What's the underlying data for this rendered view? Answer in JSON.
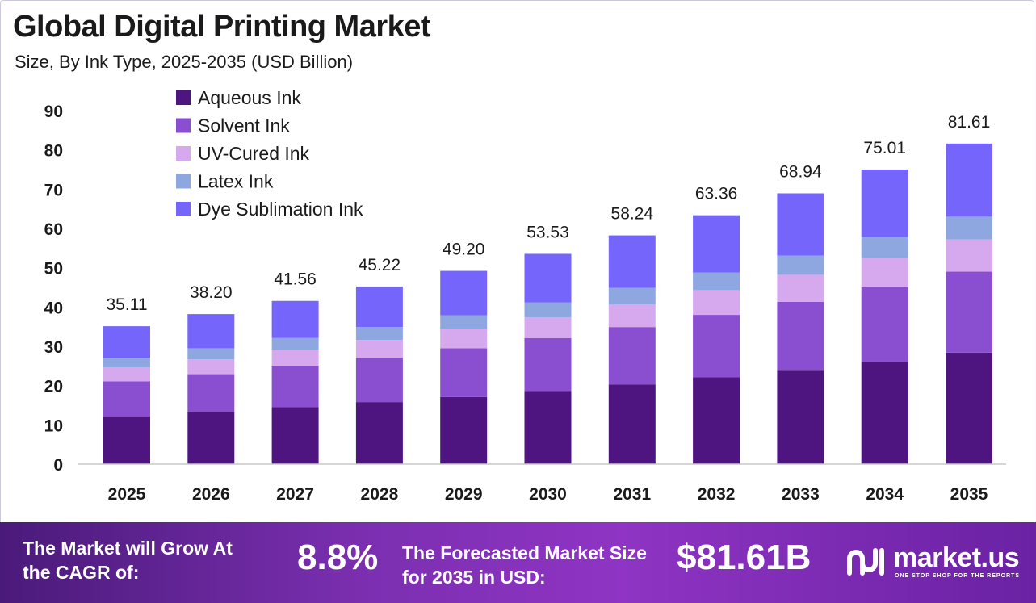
{
  "header": {
    "title": "Global Digital Printing Market",
    "subtitle": "Size, By Ink Type, 2025-2035 (USD Billion)"
  },
  "chart_data": {
    "type": "bar",
    "stacked": true,
    "categories": [
      "2025",
      "2026",
      "2027",
      "2028",
      "2029",
      "2030",
      "2031",
      "2032",
      "2033",
      "2034",
      "2035"
    ],
    "totals": [
      "35.11",
      "38.20",
      "41.56",
      "45.22",
      "49.20",
      "53.53",
      "58.24",
      "63.36",
      "68.94",
      "75.01",
      "81.61"
    ],
    "series": [
      {
        "name": "Aqueous Ink",
        "color": "#4e1580",
        "values": [
          12.2,
          13.3,
          14.5,
          15.8,
          17.1,
          18.6,
          20.3,
          22.1,
          24.0,
          26.1,
          28.4
        ]
      },
      {
        "name": "Solvent Ink",
        "color": "#8a4ed0",
        "values": [
          8.9,
          9.6,
          10.4,
          11.3,
          12.4,
          13.5,
          14.6,
          15.9,
          17.3,
          18.9,
          20.6
        ]
      },
      {
        "name": "UV-Cured Ink",
        "color": "#d6a9ef",
        "values": [
          3.5,
          3.8,
          4.2,
          4.5,
          4.9,
          5.3,
          5.8,
          6.3,
          6.9,
          7.5,
          8.2
        ]
      },
      {
        "name": "Latex Ink",
        "color": "#8fa7e0",
        "values": [
          2.5,
          2.8,
          3.0,
          3.3,
          3.5,
          3.8,
          4.2,
          4.5,
          4.9,
          5.3,
          5.8
        ]
      },
      {
        "name": "Dye Sublimation Ink",
        "color": "#7565fb",
        "values": [
          8.01,
          8.7,
          9.46,
          10.32,
          11.3,
          12.33,
          13.34,
          14.56,
          15.84,
          17.21,
          18.61
        ]
      }
    ],
    "yticks": [
      0,
      10,
      20,
      30,
      40,
      50,
      60,
      70,
      80,
      90
    ],
    "ylim": [
      0,
      90
    ],
    "legend_position": "top-left",
    "grid": false
  },
  "footer": {
    "cagr_label": "The Market will Grow At the CAGR of:",
    "cagr_value": "8.8%",
    "forecast_label": "The Forecasted Market Size for 2035 in USD:",
    "forecast_value": "$81.61B",
    "logo_text": "market.us",
    "logo_tagline": "ONE STOP SHOP FOR THE REPORTS"
  }
}
